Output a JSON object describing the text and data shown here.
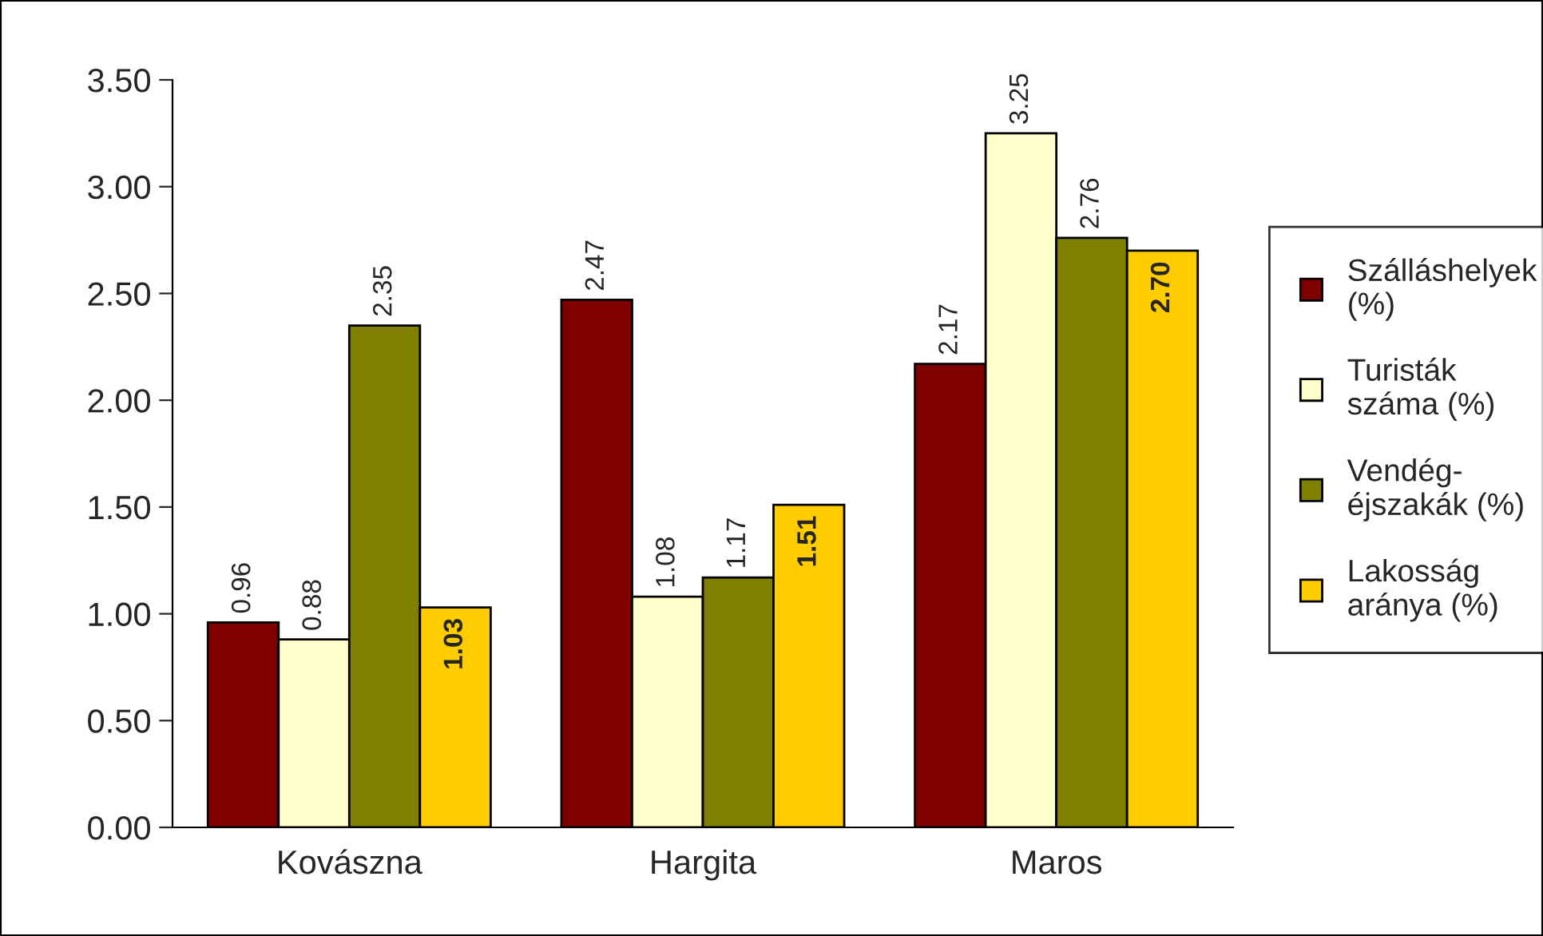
{
  "chart_data": {
    "type": "bar",
    "categories": [
      "Kovászna",
      "Hargita",
      "Maros"
    ],
    "series": [
      {
        "name": "Szálláshelyek\n(%)",
        "color": "#800000",
        "values": [
          0.96,
          2.47,
          2.17
        ],
        "value_labels": [
          "0.96",
          "2.47",
          "2.17"
        ]
      },
      {
        "name": "Turisták\nszáma (%)",
        "color": "#ffffcc",
        "values": [
          0.88,
          1.08,
          3.25
        ],
        "value_labels": [
          "0.88",
          "1.08",
          "3.25"
        ]
      },
      {
        "name": "Vendég-\néjszakák (%)",
        "color": "#808000",
        "values": [
          2.35,
          1.17,
          2.76
        ],
        "value_labels": [
          "2.35",
          "1.17",
          "2.76"
        ]
      },
      {
        "name": "Lakosság\naránya (%)",
        "color": "#ffcc00",
        "values": [
          1.03,
          1.51,
          2.7
        ],
        "value_labels": [
          "1.03",
          "1.51",
          "2.70"
        ]
      }
    ],
    "ylim": [
      0,
      3.5
    ],
    "yticks": [
      {
        "value": 0,
        "label": "0.00"
      },
      {
        "value": 0.5,
        "label": "0.50"
      },
      {
        "value": 1,
        "label": "1.00"
      },
      {
        "value": 1.5,
        "label": "1.50"
      },
      {
        "value": 2,
        "label": "2.00"
      },
      {
        "value": 2.5,
        "label": "2.50"
      },
      {
        "value": 3,
        "label": "3.00"
      },
      {
        "value": 3.5,
        "label": "3.50"
      }
    ],
    "grid": false,
    "legend": "right"
  }
}
